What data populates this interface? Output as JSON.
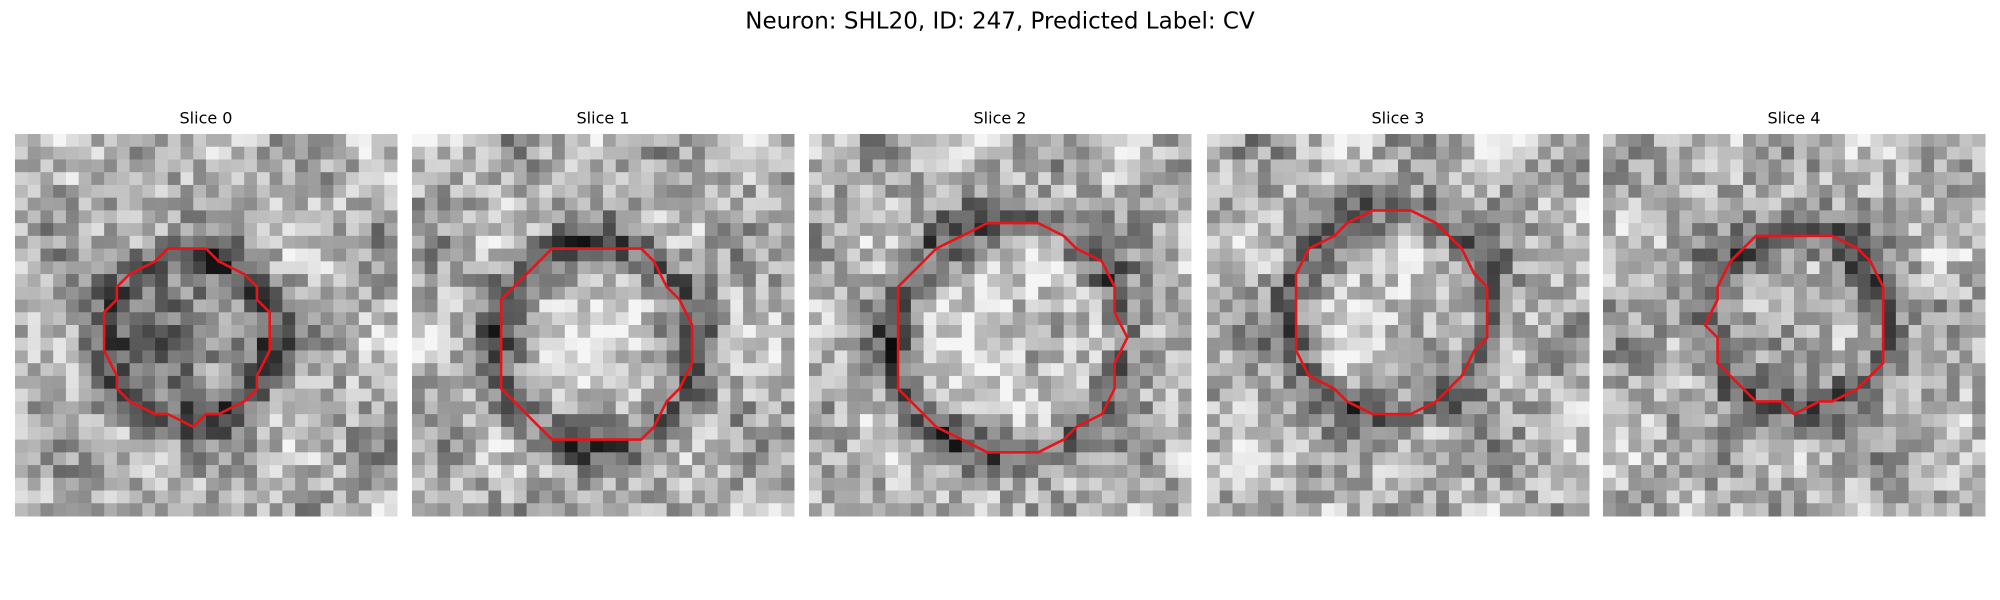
{
  "header": {
    "title": "Neuron: SHL20, ID: 247, Predicted Label: CV"
  },
  "panels": [
    {
      "title": "Slice 0"
    },
    {
      "title": "Slice 1"
    },
    {
      "title": "Slice 2"
    },
    {
      "title": "Slice 3"
    },
    {
      "title": "Slice 4"
    }
  ]
}
